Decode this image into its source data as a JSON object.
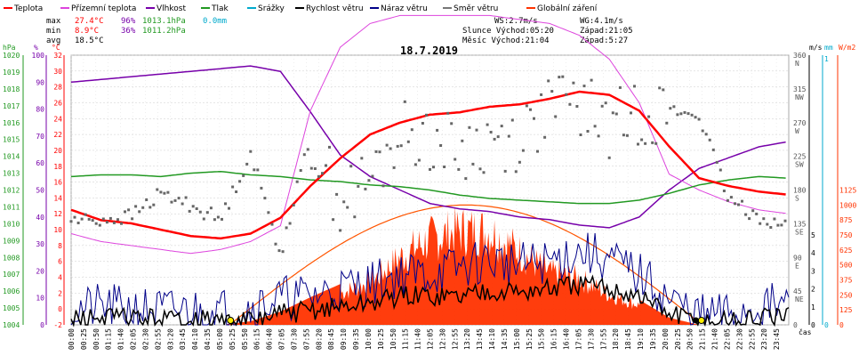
{
  "chart_data": {
    "type": "line",
    "title": "18.7.2019",
    "legend": [
      {
        "label": "Teplota",
        "color": "#ff0000"
      },
      {
        "label": "Přízemní teplota",
        "color": "#dd44dd"
      },
      {
        "label": "Vlhkost",
        "color": "#7700aa"
      },
      {
        "label": "Tlak",
        "color": "#229922"
      },
      {
        "label": "Srážky",
        "color": "#00aacc"
      },
      {
        "label": "Rychlost větru",
        "color": "#000000"
      },
      {
        "label": "Náraz větru",
        "color": "#000088"
      },
      {
        "label": "Směr větru",
        "color": "#777777"
      },
      {
        "label": "Globální záření",
        "color": "#ff3300"
      }
    ],
    "stats": {
      "max": {
        "label": "max",
        "temp": "27.4°C",
        "hum": "96%",
        "press": "1013.1hPa",
        "rain": "0.0mm"
      },
      "min": {
        "label": "min",
        "temp": "8.9°C",
        "hum": "36%",
        "press": "1011.2hPa"
      },
      "avg": {
        "label": "avg",
        "temp": "18.5°C"
      }
    },
    "wind_info": {
      "ws": "WS:2.7m/s",
      "wg": "WG:4.1m/s"
    },
    "sun_info": {
      "sunrise": "Slunce Východ:05:20",
      "sunset": "Západ:21:05",
      "moonrise": "Měsíc Východ:21:04",
      "moonset": "Západ:5:27"
    },
    "axis_units": {
      "hpa": "hPa",
      "pct": "%",
      "deg": "°C",
      "ms": "m/s",
      "mm": "mm",
      "wm2": "W/m2",
      "time": "čas"
    },
    "axes": {
      "pressure_ticks": [
        "1020",
        "1019",
        "1018",
        "1017",
        "1016",
        "1015",
        "1014",
        "1013",
        "1012",
        "1011",
        "1010",
        "1009",
        "1008",
        "1007",
        "1006",
        "1005",
        "1004"
      ],
      "humidity_ticks": [
        "100",
        "90",
        "80",
        "70",
        "60",
        "50",
        "40",
        "30",
        "20",
        "10",
        "0"
      ],
      "temperature_ticks": [
        "32",
        "30",
        "28",
        "26",
        "24",
        "22",
        "20",
        "18",
        "16",
        "14",
        "12",
        "10",
        "8",
        "6",
        "4",
        "2",
        "0",
        "-2"
      ],
      "wind_dir_ticks": [
        "360\nN",
        "315\nNW",
        "270\nW",
        "225\nSW",
        "180\nS",
        "135\nSE",
        "90\nE",
        "45\nNE",
        "0"
      ],
      "wind_speed_ticks": [
        "5",
        "4",
        "3",
        "2",
        "1",
        "0"
      ],
      "rain_ticks": [
        "1",
        "0"
      ],
      "radiation_ticks": [
        "1125",
        "1000",
        "875",
        "750",
        "625",
        "500",
        "375",
        "250",
        "125",
        "0"
      ],
      "time_labels": [
        "00:00",
        "00:25",
        "00:50",
        "01:15",
        "01:40",
        "02:05",
        "02:30",
        "02:55",
        "03:20",
        "03:45",
        "04:10",
        "04:35",
        "05:00",
        "05:25",
        "05:50",
        "06:15",
        "06:40",
        "07:05",
        "07:30",
        "07:55",
        "08:20",
        "08:45",
        "09:10",
        "09:35",
        "10:00",
        "10:25",
        "10:50",
        "11:15",
        "11:40",
        "12:05",
        "12:30",
        "12:55",
        "13:20",
        "13:45",
        "14:10",
        "14:35",
        "15:00",
        "15:25",
        "15:50",
        "16:15",
        "16:40",
        "17:05",
        "17:30",
        "17:55",
        "18:20",
        "18:45",
        "19:10",
        "19:35",
        "20:00",
        "20:25",
        "20:50",
        "21:15",
        "21:40",
        "22:05",
        "22:30",
        "22:55",
        "23:20",
        "23:45"
      ]
    },
    "x_hours": [
      0,
      1,
      2,
      3,
      4,
      5,
      6,
      7,
      8,
      9,
      10,
      11,
      12,
      13,
      14,
      15,
      16,
      17,
      18,
      19,
      20,
      21,
      22,
      23,
      24
    ],
    "series": [
      {
        "name": "Teplota",
        "unit": "°C",
        "values": [
          12.5,
          11.2,
          10.8,
          10.0,
          9.2,
          8.9,
          9.5,
          11.5,
          15.5,
          19.0,
          22.0,
          23.5,
          24.5,
          24.8,
          25.5,
          25.8,
          26.5,
          27.4,
          27.0,
          25.0,
          20.5,
          16.5,
          15.5,
          14.8,
          14.4
        ]
      },
      {
        "name": "Přízemní teplota",
        "unit": "°C",
        "values": [
          9.5,
          8.5,
          8.0,
          7.5,
          7.0,
          7.5,
          8.5,
          10.5,
          25.0,
          33.0,
          36.0,
          37.0,
          37.0,
          37.0,
          37.0,
          36.5,
          36.0,
          34.5,
          31.5,
          26.0,
          17.0,
          15.0,
          13.5,
          12.5,
          12.0
        ]
      },
      {
        "name": "Vlhkost",
        "unit": "%",
        "values": [
          90,
          91,
          92,
          93,
          94,
          95,
          96,
          94,
          79,
          63,
          55,
          50,
          45,
          43,
          42,
          40,
          39,
          37,
          36,
          40,
          50,
          58,
          62,
          66,
          68
        ]
      },
      {
        "name": "Tlak",
        "unit": "hPa",
        "values": [
          1012.8,
          1012.9,
          1012.9,
          1012.8,
          1013.0,
          1013.1,
          1012.9,
          1012.8,
          1012.6,
          1012.5,
          1012.3,
          1012.2,
          1012.0,
          1011.7,
          1011.5,
          1011.4,
          1011.3,
          1011.2,
          1011.2,
          1011.4,
          1011.8,
          1012.3,
          1012.6,
          1012.8,
          1012.7
        ]
      },
      {
        "name": "Rychlost větru",
        "unit": "m/s",
        "values": [
          0.3,
          0.4,
          0.4,
          0.3,
          0.3,
          0.2,
          0.2,
          0.6,
          0.8,
          1.0,
          1.2,
          1.6,
          1.6,
          1.6,
          2.0,
          1.8,
          2.0,
          2.2,
          2.0,
          1.6,
          0.6,
          0.2,
          0.2,
          0.3,
          0.4
        ]
      },
      {
        "name": "Náraz větru",
        "unit": "m/s",
        "values": [
          0.8,
          1.0,
          0.9,
          0.8,
          0.8,
          0.8,
          1.0,
          1.5,
          1.6,
          2.0,
          2.3,
          2.8,
          2.8,
          3.2,
          3.6,
          3.3,
          3.5,
          4.1,
          3.6,
          2.8,
          1.4,
          0.5,
          0.6,
          1.0,
          1.1
        ]
      },
      {
        "name": "Směr větru",
        "unit": "°",
        "values": [
          140,
          140,
          145,
          175,
          160,
          140,
          230,
          95,
          250,
          165,
          190,
          255,
          250,
          230,
          245,
          250,
          290,
          295,
          265,
          285,
          285,
          280,
          165,
          145,
          130
        ]
      },
      {
        "name": "Globální záření",
        "unit": "W/m2",
        "values": [
          0,
          0,
          0,
          0,
          0,
          0,
          30,
          110,
          230,
          340,
          450,
          720,
          920,
          1010,
          1000,
          780,
          560,
          500,
          320,
          210,
          60,
          0,
          0,
          0,
          0
        ]
      }
    ],
    "ranges": {
      "temperature": [
        -2,
        32
      ],
      "humidity": [
        0,
        100
      ],
      "pressure": [
        1004,
        1020
      ],
      "wind_speed": [
        0,
        5
      ],
      "wind_dir": [
        0,
        360
      ],
      "radiation": [
        0,
        1125
      ],
      "x_hours": [
        0,
        24
      ]
    }
  }
}
